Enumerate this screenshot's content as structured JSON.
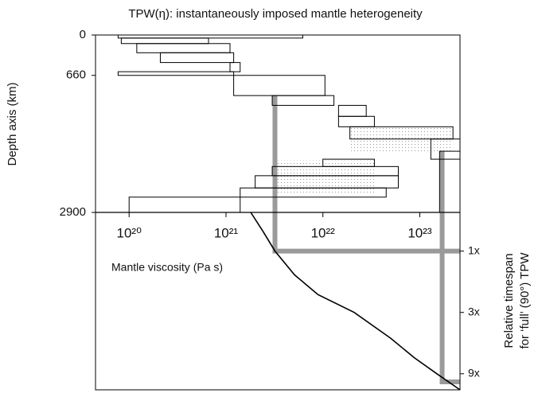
{
  "chart_data": {
    "type": "viscosity-profile",
    "title": "TPW(η): instantaneously imposed mantle heterogeneity",
    "ylabel": "Depth axis (km)",
    "xlabel": "Mantle viscosity (Pa s)",
    "y2label": [
      "Relative timespan",
      "for ‘full’ (90°) TPW"
    ],
    "xscale": "log",
    "y2scale": "log",
    "xlim": [
      4.5e+19,
      2.6e+23
    ],
    "xticks": [
      {
        "value": 1e+20,
        "label": "10²⁰"
      },
      {
        "value": 1e+21,
        "label": "10²¹"
      },
      {
        "value": 1e+22,
        "label": "10²²"
      },
      {
        "value": 1e+23,
        "label": "10²³"
      }
    ],
    "ylim": [
      0,
      2900
    ],
    "yticks": [
      0,
      660,
      2900
    ],
    "y2lim": [
      0.5,
      12
    ],
    "y2ticks": [
      {
        "value": 1,
        "label": "1x"
      },
      {
        "value": 3,
        "label": "3x"
      },
      {
        "value": 9,
        "label": "9x"
      }
    ],
    "layers": [
      {
        "depth_top": 0,
        "depth_bottom": 50,
        "eta_min": 7.7e+19,
        "eta_max": 6.2e+21
      },
      {
        "depth_top": 50,
        "depth_bottom": 140,
        "eta_min": 8.3e+19,
        "eta_max": 6.6e+20
      },
      {
        "depth_top": 140,
        "depth_bottom": 290,
        "eta_min": 1.2e+20,
        "eta_max": 1.1e+21
      },
      {
        "depth_top": 290,
        "depth_bottom": 450,
        "eta_min": 2.1e+20,
        "eta_max": 1.2e+21
      },
      {
        "depth_top": 450,
        "depth_bottom": 600,
        "eta_min": 1.1e+21,
        "eta_max": 1.4e+21
      },
      {
        "depth_top": 600,
        "depth_bottom": 660,
        "eta_min": 7.7e+19,
        "eta_max": 1.2e+21
      },
      {
        "depth_top": 660,
        "depth_bottom": 990,
        "eta_min": 1.2e+21,
        "eta_max": 1.05e+22
      },
      {
        "depth_top": 990,
        "depth_bottom": 1150,
        "eta_min": 3e+21,
        "eta_max": 1.3e+22
      },
      {
        "depth_top": 1150,
        "depth_bottom": 1330,
        "eta_min": 1.45e+22,
        "eta_max": 2.8e+22
      },
      {
        "depth_top": 1330,
        "depth_bottom": 1500,
        "eta_min": 1.45e+22,
        "eta_max": 3.4e+22
      },
      {
        "depth_top": 1500,
        "depth_bottom": 1700,
        "eta_min": 1.9e+22,
        "eta_max": 2.2e+23
      },
      {
        "depth_top": 1700,
        "depth_bottom": 2030,
        "eta_min": 1.3e+23,
        "eta_max": 2.6e+23
      },
      {
        "depth_top": 2030,
        "depth_bottom": 2150,
        "eta_min": 1e+22,
        "eta_max": 3.4e+22
      },
      {
        "depth_top": 2150,
        "depth_bottom": 2300,
        "eta_min": 3e+21,
        "eta_max": 6e+22
      },
      {
        "depth_top": 2300,
        "depth_bottom": 2500,
        "eta_min": 2e+21,
        "eta_max": 6e+22
      },
      {
        "depth_top": 2500,
        "depth_bottom": 2650,
        "eta_min": 1.4e+21,
        "eta_max": 4.5e+22
      },
      {
        "depth_top": 2650,
        "depth_bottom": 2900,
        "eta_min": 1e+20,
        "eta_max": 1.4e+21
      },
      {
        "depth_top": 1900,
        "depth_bottom": 2900,
        "eta_min": 1.6e+23,
        "eta_max": 2.6e+23
      }
    ],
    "shaded": [
      {
        "depth_top": 1500,
        "depth_bottom": 1900,
        "eta_min": 1.9e+22,
        "eta_max": 2.2e+23
      },
      {
        "depth_top": 2050,
        "depth_bottom": 2600,
        "eta_min": 3e+21,
        "eta_max": 3.4e+22
      }
    ],
    "connectors": [
      {
        "eta": 3.2e+21,
        "depth": 990,
        "timespan": 1
      },
      {
        "eta": 1.7e+23,
        "depth": 1900,
        "timespan": 10.4
      }
    ],
    "curve": {
      "eta": [
        1.8e+21,
        2.4e+21,
        3.2e+21,
        5.1e+21,
        8.9e+21,
        2.1e+22,
        5e+22,
        8.8e+22,
        1.5e+23,
        2.6e+23
      ],
      "timespan": [
        0.5,
        0.7,
        1,
        1.53,
        2.18,
        3,
        4.76,
        6.77,
        9,
        12
      ]
    },
    "color": "#000000",
    "shade_color": "#9a9a9a"
  }
}
